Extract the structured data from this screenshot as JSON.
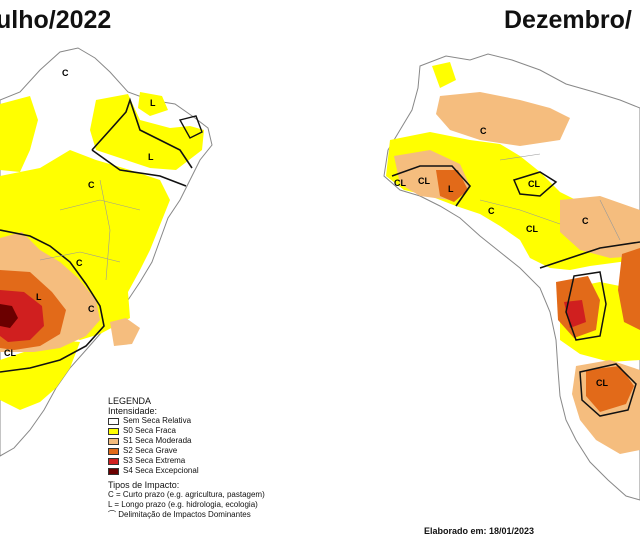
{
  "titles": {
    "left": "ulho/2022",
    "right": "Dezembro/"
  },
  "legend": {
    "heading": "LEGENDA",
    "intensity_heading": "Intensidade:",
    "intensity": [
      {
        "label": "Sem Seca Relativa",
        "color": "#ffffff"
      },
      {
        "label": "S0 Seca Fraca",
        "color": "#ffff00"
      },
      {
        "label": "S1 Seca Moderada",
        "color": "#f5bd7e"
      },
      {
        "label": "S2 Seca Grave",
        "color": "#e26a19"
      },
      {
        "label": "S3 Seca Extrema",
        "color": "#d01f1f"
      },
      {
        "label": "S4 Seca Excepcional",
        "color": "#6b0000"
      }
    ],
    "impact_heading": "Tipos de Impacto:",
    "impacts": [
      "C = Curto prazo (e.g. agricultura, pastagem)",
      "L = Longo prazo (e.g. hidrologia, ecologia)",
      "Delimitação de Impactos Dominantes"
    ]
  },
  "map_labels": {
    "c": "C",
    "l": "L",
    "cl": "CL"
  },
  "footer": "Elaborado em: 18/01/2023"
}
